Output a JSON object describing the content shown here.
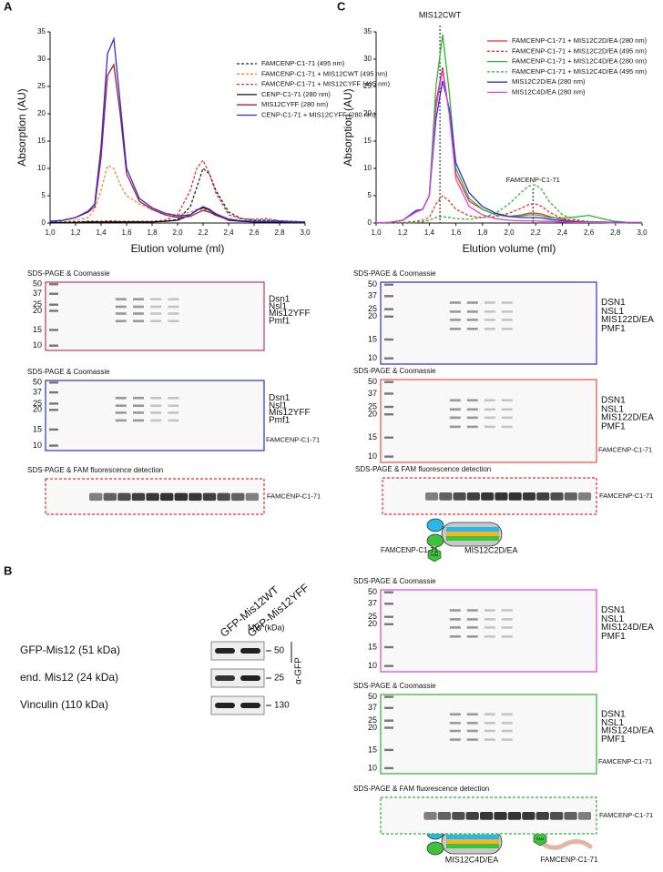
{
  "chart_data": [
    {
      "type": "line",
      "panel": "A",
      "ylabel": "Absorption (AU)",
      "xlabel": "Elution volume (ml)",
      "legend": "upper right",
      "x": [
        1.0,
        1.1,
        1.2,
        1.3,
        1.35,
        1.4,
        1.45,
        1.5,
        1.55,
        1.6,
        1.7,
        1.8,
        1.9,
        2.0,
        2.1,
        2.15,
        2.2,
        2.25,
        2.3,
        2.4,
        2.5,
        2.6,
        2.7,
        2.8,
        2.9,
        3.0
      ],
      "xlim": [
        1.0,
        3.0
      ],
      "ylim": [
        0,
        35
      ],
      "yticks": [
        0,
        5,
        10,
        15,
        20,
        25,
        30,
        35
      ],
      "xticks": [
        {
          "value": 1.0,
          "label": "1,0"
        },
        {
          "value": 1.2,
          "label": "1,2"
        },
        {
          "value": 1.4,
          "label": "1,4"
        },
        {
          "value": 1.6,
          "label": "1,6"
        },
        {
          "value": 1.8,
          "label": "1,8"
        },
        {
          "value": 2.0,
          "label": "2,0"
        },
        {
          "value": 2.2,
          "label": "2,2"
        },
        {
          "value": 2.4,
          "label": "2,4"
        },
        {
          "value": 2.6,
          "label": "2,6"
        },
        {
          "value": 2.8,
          "label": "2,8"
        },
        {
          "value": 3.0,
          "label": "3,0"
        }
      ],
      "series": [
        {
          "name": "FAMCENP-C1-71 (495 nm)",
          "color": "#222222",
          "dashed": true,
          "values": [
            0.2,
            0.2,
            0.2,
            0.3,
            0.3,
            0.3,
            0.3,
            0.3,
            0.3,
            0.3,
            0.3,
            0.3,
            0.4,
            0.6,
            3,
            6.5,
            10,
            9,
            6,
            2,
            0.8,
            0.5,
            0.5,
            0.4,
            0.3,
            0.2
          ]
        },
        {
          "name": "FAMCENP-C1-71 + MIS12CWT (495 nm)",
          "color": "#f28c28",
          "dashed": true,
          "values": [
            0.2,
            0.2,
            0.5,
            1,
            2.5,
            6,
            10.5,
            10,
            7,
            5,
            3.5,
            2.5,
            1.8,
            1.5,
            2,
            2.4,
            2.5,
            2.2,
            1.6,
            0.8,
            0.4,
            0.3,
            0.3,
            0.2,
            0.2,
            0.2
          ]
        },
        {
          "name": "FAMCENP-C1-71 + MIS12CYFF (495 nm)",
          "color": "#e8302a",
          "dashed": true,
          "values": [
            0.1,
            0.1,
            0.1,
            0.2,
            0.2,
            0.3,
            0.4,
            0.4,
            0.3,
            0.3,
            0.3,
            0.3,
            0.5,
            1.5,
            6,
            10,
            11.5,
            9,
            5.5,
            1.5,
            0.8,
            0.7,
            0.8,
            0.4,
            0.2,
            0.1
          ]
        },
        {
          "name": "CENP-C1-71 (280 nm)",
          "color": "#111111",
          "dashed": false,
          "values": [
            0.1,
            0.1,
            0.1,
            0.2,
            0.2,
            0.2,
            0.2,
            0.2,
            0.2,
            0.2,
            0.2,
            0.2,
            0.3,
            0.5,
            1.5,
            2.4,
            2.8,
            2.4,
            1.6,
            0.5,
            0.3,
            0.2,
            0.2,
            0.2,
            0.1,
            0.1
          ]
        },
        {
          "name": "MIS12CYFF (280 nm)",
          "color": "#b0173a",
          "dashed": false,
          "values": [
            0.3,
            0.5,
            1,
            2,
            3,
            12,
            27,
            29,
            20,
            9,
            4,
            2.5,
            1.5,
            1,
            1.2,
            1.8,
            2.3,
            2,
            1.4,
            0.6,
            0.4,
            0.3,
            0.3,
            0.3,
            0.2,
            0.2
          ]
        },
        {
          "name": "CENP-C1-71 + MIS12CYFF (280 nm)",
          "color": "#2a2fd0",
          "dashed": false,
          "values": [
            0.3,
            0.5,
            1,
            2.2,
            3.5,
            14,
            31,
            33.7,
            22,
            10,
            4.5,
            2.8,
            1.8,
            1.3,
            1.5,
            2.3,
            3,
            2.5,
            1.7,
            0.7,
            0.4,
            0.3,
            0.3,
            0.3,
            0.2,
            0.2
          ]
        }
      ]
    },
    {
      "type": "line",
      "panel": "C",
      "ylabel": "Absorption (AU)",
      "xlabel": "Elution volume (ml)",
      "legend": "upper right",
      "x": [
        1.0,
        1.1,
        1.2,
        1.3,
        1.35,
        1.4,
        1.45,
        1.5,
        1.55,
        1.6,
        1.7,
        1.8,
        1.9,
        2.0,
        2.1,
        2.15,
        2.2,
        2.25,
        2.3,
        2.4,
        2.5,
        2.6,
        2.7,
        2.8,
        2.9,
        3.0
      ],
      "xlim": [
        1.0,
        3.0
      ],
      "ylim": [
        0,
        35
      ],
      "yticks": [
        0,
        5,
        10,
        15,
        20,
        25,
        30,
        35
      ],
      "xticks": [
        {
          "value": 1.0,
          "label": "1,0"
        },
        {
          "value": 1.2,
          "label": "1,2"
        },
        {
          "value": 1.4,
          "label": "1,4"
        },
        {
          "value": 1.6,
          "label": "1,6"
        },
        {
          "value": 1.8,
          "label": "1,8"
        },
        {
          "value": 2.0,
          "label": "2,0"
        },
        {
          "value": 2.2,
          "label": "2,2"
        },
        {
          "value": 2.4,
          "label": "2,4"
        },
        {
          "value": 2.6,
          "label": "2,6"
        },
        {
          "value": 2.8,
          "label": "2,8"
        },
        {
          "value": 3.0,
          "label": "3,0"
        }
      ],
      "annotations": [
        {
          "text": "MIS12CWT",
          "x": 1.48
        },
        {
          "text": "FAMCENP-C1-71",
          "x": 2.18
        }
      ],
      "series": [
        {
          "name": "FAMCENP-C1-71 + MIS12C2D/EA (280 nm)",
          "color": "#e8302a",
          "dashed": false,
          "values": [
            0,
            0.1,
            0.5,
            2,
            2.5,
            5,
            22,
            28.5,
            20,
            9,
            4,
            2.5,
            1.5,
            1.2,
            1.5,
            1.8,
            1.8,
            1.6,
            1.2,
            0.6,
            0.3,
            0.2,
            0.2,
            0.1,
            0.1,
            0.1
          ]
        },
        {
          "name": "FAMCENP-C1-71 + MIS12C2D/EA (495 nm)",
          "color": "#e8302a",
          "dashed": true,
          "values": [
            0,
            0,
            0.1,
            0.3,
            0.5,
            1,
            3.5,
            5,
            4,
            2.5,
            1.3,
            1,
            1.2,
            1.8,
            2.8,
            3.4,
            3.5,
            3,
            2,
            0.8,
            0.4,
            0.2,
            0.1,
            0.1,
            0,
            0
          ]
        },
        {
          "name": "FAMCENP-C1-71 + MIS12C4D/EA (280 nm)",
          "color": "#2db52d",
          "dashed": false,
          "values": [
            0,
            0.1,
            0.5,
            2,
            2.5,
            5,
            25,
            34.5,
            24,
            10,
            4.5,
            2.5,
            1.5,
            1.2,
            1.3,
            1.5,
            1.5,
            1.3,
            1,
            0.9,
            1.1,
            1.4,
            0.8,
            0.3,
            0.1,
            0.1
          ]
        },
        {
          "name": "FAMCENP-C1-71 + MIS12C4D/EA (495 nm)",
          "color": "#2db52d",
          "dashed": true,
          "values": [
            0,
            0,
            0,
            0.1,
            0.2,
            0.5,
            1,
            1.2,
            1,
            0.8,
            0.7,
            1,
            1.8,
            3.5,
            5.8,
            6.8,
            7,
            6,
            4,
            1.5,
            0.6,
            0.3,
            0.2,
            0.1,
            0,
            0
          ]
        },
        {
          "name": "MIS12C2D/EA (280 nm)",
          "color": "#2a2fd0",
          "dashed": false,
          "values": [
            0,
            0.1,
            0.5,
            2.3,
            2.5,
            5,
            19,
            26,
            21,
            11,
            5.5,
            3,
            1.8,
            1.2,
            1,
            1,
            1,
            0.9,
            0.7,
            0.4,
            0.2,
            0.1,
            0.1,
            0.1,
            0,
            0
          ]
        },
        {
          "name": "MIS12C4D/EA (280 nm)",
          "color": "#e040e0",
          "dashed": false,
          "values": [
            0,
            0.1,
            0.5,
            2,
            2.5,
            5,
            21,
            28,
            20,
            8,
            3,
            1.5,
            0.8,
            0.5,
            0.4,
            0.4,
            0.4,
            0.3,
            0.3,
            0.2,
            0.1,
            0.1,
            0.1,
            0,
            0,
            0
          ]
        }
      ]
    }
  ],
  "panels": [
    {
      "label": "A",
      "gels": [
        {
          "title": "SDS-PAGE & Coomassie",
          "border": "#c33660",
          "dashed": false,
          "markers": [
            "50",
            "37",
            "25",
            "20",
            "15",
            "10"
          ],
          "bands": [
            "Dsn1",
            "Nsl1",
            "Mis12YFF",
            "Pmf1"
          ]
        },
        {
          "title": "SDS-PAGE & Coomassie",
          "border": "#2a2fd0",
          "dashed": false,
          "markers": [
            "50",
            "37",
            "25",
            "20",
            "15",
            "10"
          ],
          "bands": [
            "Dsn1",
            "Nsl1",
            "Mis12YFF",
            "Pmf1"
          ],
          "extra": "FAMCENP-C1-71"
        },
        {
          "title": "SDS-PAGE & FAM fluorescence detection",
          "border": "#e8302a",
          "dashed": true,
          "bands": [
            "FAMCENP-C1-71"
          ]
        }
      ]
    },
    {
      "label": "B",
      "columns": [
        "GFP-Mis12WT",
        "GFP-Mis12YFF"
      ],
      "mw_header": "MW (kDa)",
      "antibody": "α-GFP",
      "rows": [
        {
          "label": "GFP-Mis12 (51 kDa)",
          "mw": "50"
        },
        {
          "label": "end. Mis12 (24 kDa)",
          "mw": "25"
        },
        {
          "label": "Vinculin (110 kDa)",
          "mw": "130"
        }
      ]
    },
    {
      "label": "C",
      "gels": [
        {
          "title": "SDS-PAGE & Coomassie",
          "border": "#2a2fd0",
          "dashed": false,
          "markers": [
            "50",
            "37",
            "25",
            "20",
            "15",
            "10"
          ],
          "bands": [
            "DSN1",
            "NSL1",
            "MIS122D/EA",
            "PMF1"
          ]
        },
        {
          "title": "SDS-PAGE & Coomassie",
          "border": "#e8503a",
          "dashed": false,
          "markers": [
            "50",
            "37",
            "25",
            "20",
            "15",
            "10"
          ],
          "bands": [
            "DSN1",
            "NSL1",
            "MIS122D/EA",
            "PMF1"
          ],
          "extra": "FAMCENP-C1-71"
        },
        {
          "title": "SDS-PAGE & FAM fluorescence detection",
          "border": "#e8302a",
          "dashed": true,
          "bands": [
            "FAMCENP-C1-71"
          ]
        },
        {
          "title": "SDS-PAGE & Coomassie",
          "border": "#e040e0",
          "dashed": false,
          "markers": [
            "50",
            "37",
            "25",
            "20",
            "15",
            "10"
          ],
          "bands": [
            "DSN1",
            "NSL1",
            "MIS124D/EA",
            "PMF1"
          ]
        },
        {
          "title": "SDS-PAGE & Coomassie",
          "border": "#2db52d",
          "dashed": false,
          "markers": [
            "50",
            "37",
            "25",
            "20",
            "15",
            "10"
          ],
          "bands": [
            "DSN1",
            "NSL1",
            "MIS124D/EA",
            "PMF1"
          ],
          "extra": "FAMCENP-C1-71"
        },
        {
          "title": "SDS-PAGE & FAM fluorescence detection",
          "border": "#2db52d",
          "dashed": true,
          "bands": [
            "FAMCENP-C1-71"
          ]
        }
      ],
      "cartoons": [
        {
          "complex": "MIS12C2D/EA",
          "peptide": "FAMCENP-C1-71",
          "tag": "FAM"
        },
        {
          "complex": "MIS12C4D/EA",
          "peptide": "FAMCENP-C1-71",
          "tag": "FAM"
        }
      ]
    }
  ]
}
